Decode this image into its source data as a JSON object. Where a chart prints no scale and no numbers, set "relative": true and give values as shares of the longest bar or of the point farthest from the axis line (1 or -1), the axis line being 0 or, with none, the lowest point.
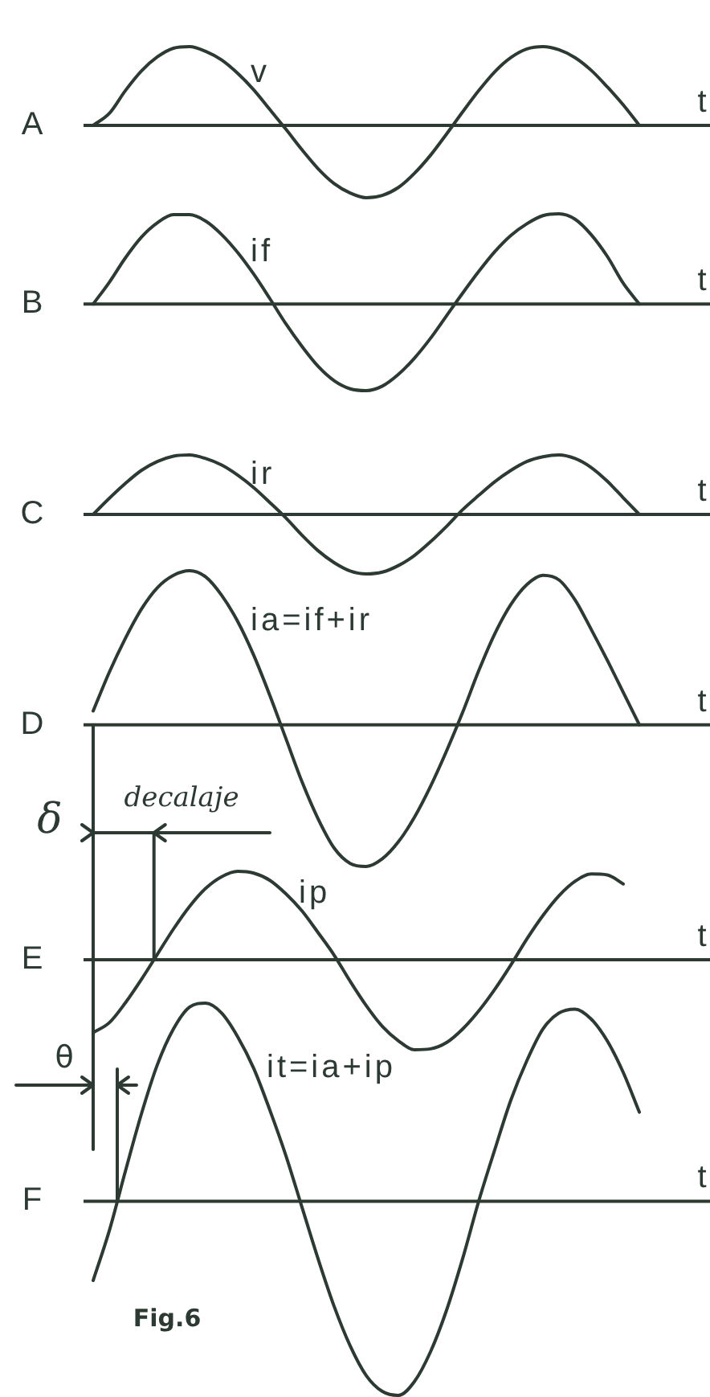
{
  "chart_data": [
    {
      "type": "line",
      "title": "A",
      "xlabel": "t",
      "relative": true,
      "categories": [
        null,
        null,
        null,
        null,
        null,
        null,
        null,
        null,
        null,
        null,
        null,
        null,
        null,
        null,
        null,
        null,
        null,
        null,
        null,
        null,
        null,
        null,
        null,
        null,
        null,
        null,
        null,
        null,
        null,
        null,
        null,
        null,
        null,
        null,
        null,
        null,
        null,
        null,
        null
      ],
      "series": [
        {
          "name": "v",
          "color": "#2d3a33",
          "values": [
            0,
            0.15,
            0.44,
            0.69,
            0.87,
            0.98,
            1.0,
            0.94,
            0.83,
            0.66,
            0.45,
            0.2,
            -0.05,
            -0.31,
            -0.55,
            -0.74,
            -0.86,
            -0.92,
            -0.89,
            -0.79,
            -0.61,
            -0.38,
            -0.11,
            0.17,
            0.44,
            0.68,
            0.86,
            0.97,
            1.0,
            0.96,
            0.86,
            0.7,
            0.49,
            0.26,
            0,
            null,
            null,
            null,
            null
          ]
        }
      ]
    },
    {
      "type": "line",
      "title": "B",
      "xlabel": "t",
      "relative": true,
      "categories": [
        null,
        null,
        null,
        null,
        null,
        null,
        null,
        null,
        null,
        null,
        null,
        null,
        null,
        null,
        null,
        null,
        null,
        null,
        null,
        null,
        null,
        null,
        null,
        null,
        null,
        null,
        null,
        null,
        null,
        null,
        null,
        null,
        null,
        null,
        null,
        null,
        null,
        null,
        null
      ],
      "series": [
        {
          "name": "if",
          "color": "#2d3a33",
          "values": [
            0,
            0.24,
            0.51,
            0.74,
            0.9,
            0.99,
            0.99,
            0.92,
            0.77,
            0.57,
            0.33,
            0.06,
            -0.22,
            -0.47,
            -0.69,
            -0.85,
            -0.94,
            -0.96,
            -0.91,
            -0.78,
            -0.6,
            -0.38,
            -0.13,
            0.12,
            0.36,
            0.58,
            0.76,
            0.89,
            0.98,
            1.0,
            0.94,
            0.77,
            0.53,
            0.23,
            0,
            null,
            null,
            null,
            null
          ]
        }
      ]
    },
    {
      "type": "line",
      "title": "C",
      "xlabel": "t",
      "relative": true,
      "categories": [
        null,
        null,
        null,
        null,
        null,
        null,
        null,
        null,
        null,
        null,
        null,
        null,
        null,
        null,
        null,
        null,
        null,
        null,
        null,
        null,
        null,
        null,
        null,
        null,
        null,
        null,
        null,
        null,
        null,
        null,
        null,
        null,
        null,
        null,
        null,
        null,
        null,
        null,
        null
      ],
      "series": [
        {
          "name": "ir",
          "color": "#2d3a33",
          "values": [
            0,
            0.27,
            0.52,
            0.74,
            0.89,
            0.98,
            1.0,
            0.94,
            0.83,
            0.66,
            0.45,
            0.2,
            -0.06,
            -0.35,
            -0.61,
            -0.81,
            -0.95,
            -1.0,
            -0.97,
            -0.86,
            -0.69,
            -0.46,
            -0.2,
            0.08,
            0.32,
            0.55,
            0.74,
            0.89,
            0.97,
            1.0,
            0.94,
            0.79,
            0.56,
            0.28,
            0,
            null,
            null,
            null,
            null
          ]
        }
      ]
    },
    {
      "type": "line",
      "title": "D",
      "xlabel": "t",
      "relative": true,
      "annotations": [
        "δ",
        "decalaje"
      ],
      "categories": [
        null,
        null,
        null,
        null,
        null,
        null,
        null,
        null,
        null,
        null,
        null,
        null,
        null,
        null,
        null,
        null,
        null,
        null,
        null,
        null,
        null,
        null,
        null,
        null,
        null,
        null,
        null,
        null,
        null,
        null,
        null,
        null,
        null,
        null,
        null,
        null,
        null,
        null,
        null
      ],
      "series": [
        {
          "name": "ia=if+ir",
          "color": "#2d3a33",
          "values": [
            0.09,
            0.34,
            0.56,
            0.75,
            0.89,
            0.97,
            1.0,
            0.96,
            0.84,
            0.67,
            0.45,
            0.19,
            -0.09,
            -0.37,
            -0.61,
            -0.8,
            -0.9,
            -0.92,
            -0.87,
            -0.76,
            -0.6,
            -0.4,
            -0.17,
            0.08,
            0.35,
            0.59,
            0.78,
            0.91,
            0.97,
            0.94,
            0.81,
            0.62,
            0.42,
            0.21,
            0,
            null,
            null,
            null,
            null
          ]
        }
      ]
    },
    {
      "type": "line",
      "title": "E",
      "xlabel": "t",
      "relative": true,
      "categories": [
        null,
        null,
        null,
        null,
        null,
        null,
        null,
        null,
        null,
        null,
        null,
        null,
        null,
        null,
        null,
        null,
        null,
        null,
        null,
        null,
        null,
        null,
        null,
        null,
        null,
        null,
        null,
        null,
        null,
        null,
        null,
        null,
        null,
        null,
        null,
        null,
        null,
        null,
        null
      ],
      "series": [
        {
          "name": "ip",
          "color": "#2d3a33",
          "values": [
            -0.81,
            -0.7,
            -0.48,
            -0.22,
            0.06,
            0.34,
            0.59,
            0.79,
            0.92,
            0.98,
            0.96,
            0.88,
            0.73,
            0.54,
            0.3,
            0.05,
            -0.24,
            -0.51,
            -0.74,
            -0.9,
            -1.0,
            -0.99,
            -0.92,
            -0.77,
            -0.57,
            -0.33,
            -0.06,
            0.23,
            0.49,
            0.71,
            0.87,
            0.95,
            0.94,
            0.84,
            null,
            null,
            null,
            null,
            null
          ]
        }
      ]
    },
    {
      "type": "line",
      "title": "F",
      "xlabel": "t",
      "relative": true,
      "annotations": [
        "θ",
        "Fig.6"
      ],
      "categories": [
        null,
        null,
        null,
        null,
        null,
        null,
        null,
        null,
        null,
        null,
        null,
        null,
        null,
        null,
        null,
        null,
        null,
        null,
        null,
        null,
        null,
        null,
        null,
        null,
        null,
        null,
        null,
        null,
        null,
        null,
        null,
        null,
        null,
        null,
        null,
        null,
        null,
        null,
        null
      ],
      "series": [
        {
          "name": "it=ia+ip",
          "color": "#2d3a33",
          "values": [
            -0.4,
            -0.15,
            0.15,
            0.44,
            0.69,
            0.87,
            0.98,
            1.0,
            0.95,
            0.83,
            0.67,
            0.46,
            0.23,
            -0.03,
            -0.29,
            -0.53,
            -0.73,
            -0.88,
            -0.96,
            -0.98,
            -0.91,
            -0.76,
            -0.55,
            -0.29,
            0,
            0.26,
            0.51,
            0.71,
            0.87,
            0.95,
            0.97,
            0.92,
            0.81,
            0.65,
            0.45,
            null,
            null,
            null,
            null
          ]
        }
      ]
    }
  ]
}
